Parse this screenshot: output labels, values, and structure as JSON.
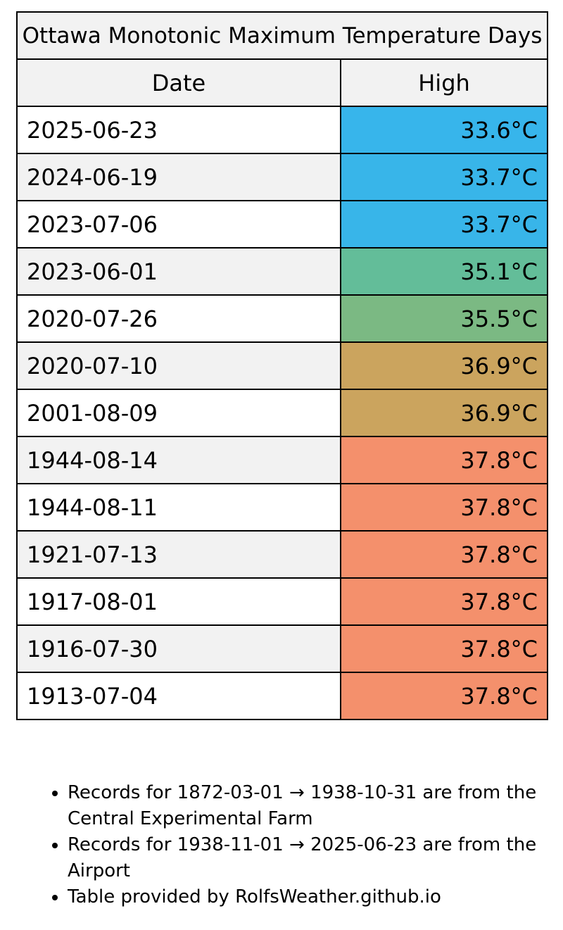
{
  "table": {
    "title": "Ottawa Monotonic Maximum Temperature Days",
    "headers": {
      "date": "Date",
      "high": "High"
    },
    "rows": [
      {
        "date": "2025-06-23",
        "high": "33.6°C",
        "color": "#37b5eb"
      },
      {
        "date": "2024-06-19",
        "high": "33.7°C",
        "color": "#38b5e9"
      },
      {
        "date": "2023-07-06",
        "high": "33.7°C",
        "color": "#38b5e9"
      },
      {
        "date": "2023-06-01",
        "high": "35.1°C",
        "color": "#63bd99"
      },
      {
        "date": "2020-07-26",
        "high": "35.5°C",
        "color": "#7bb983"
      },
      {
        "date": "2020-07-10",
        "high": "36.9°C",
        "color": "#cba45e"
      },
      {
        "date": "2001-08-09",
        "high": "36.9°C",
        "color": "#cba45e"
      },
      {
        "date": "1944-08-14",
        "high": "37.8°C",
        "color": "#f4906c"
      },
      {
        "date": "1944-08-11",
        "high": "37.8°C",
        "color": "#f4906c"
      },
      {
        "date": "1921-07-13",
        "high": "37.8°C",
        "color": "#f4906c"
      },
      {
        "date": "1917-08-01",
        "high": "37.8°C",
        "color": "#f4906c"
      },
      {
        "date": "1916-07-30",
        "high": "37.8°C",
        "color": "#f4906c"
      },
      {
        "date": "1913-07-04",
        "high": "37.8°C",
        "color": "#f4906c"
      }
    ]
  },
  "notes": [
    "Records for 1872-03-01 → 1938-10-31 are from the Central Experimental Farm",
    "Records for 1938-11-01 → 2025-06-23 are from the Airport",
    "Table provided by RolfsWeather.github.io"
  ]
}
